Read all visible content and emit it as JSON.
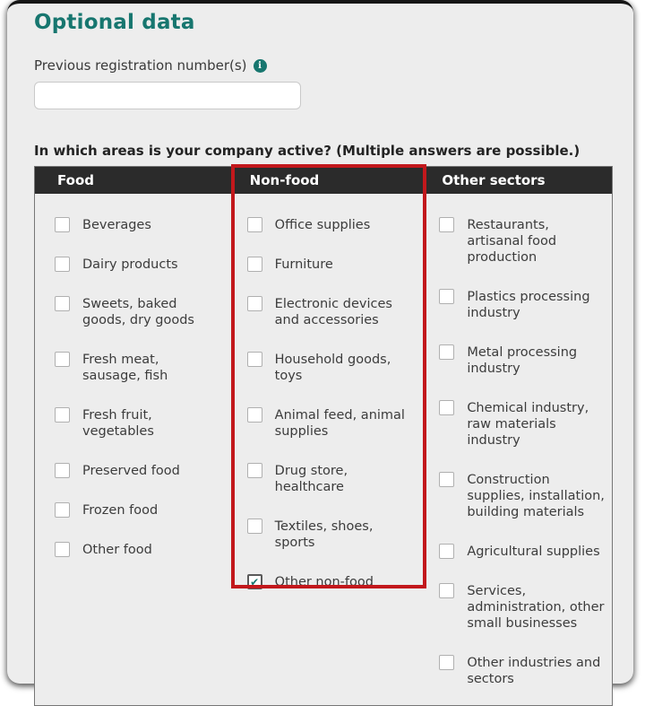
{
  "page": {
    "title": "Optional data"
  },
  "form": {
    "previous_registration": {
      "label": "Previous registration number(s)",
      "info_icon": "i",
      "value": "",
      "placeholder": ""
    },
    "question": "In which areas is your company active? (Multiple answers are possible.)"
  },
  "table": {
    "columns": [
      {
        "header": "Food",
        "items": [
          {
            "label": "Beverages",
            "checked": false
          },
          {
            "label": "Dairy products",
            "checked": false
          },
          {
            "label": "Sweets, baked goods, dry goods",
            "checked": false
          },
          {
            "label": "Fresh meat, sausage, fish",
            "checked": false
          },
          {
            "label": "Fresh fruit, vegetables",
            "checked": false
          },
          {
            "label": "Preserved food",
            "checked": false
          },
          {
            "label": "Frozen food",
            "checked": false
          },
          {
            "label": "Other food",
            "checked": false
          }
        ]
      },
      {
        "header": "Non-food",
        "highlighted": true,
        "items": [
          {
            "label": "Office supplies",
            "checked": false
          },
          {
            "label": "Furniture",
            "checked": false
          },
          {
            "label": "Electronic devices and accessories",
            "checked": false
          },
          {
            "label": "Household goods, toys",
            "checked": false
          },
          {
            "label": "Animal feed, animal supplies",
            "checked": false
          },
          {
            "label": "Drug store, healthcare",
            "checked": false
          },
          {
            "label": "Textiles, shoes, sports",
            "checked": false
          },
          {
            "label": "Other non-food",
            "checked": true
          }
        ]
      },
      {
        "header": "Other sectors",
        "items": [
          {
            "label": "Restaurants, artisanal food production",
            "checked": false
          },
          {
            "label": "Plastics processing industry",
            "checked": false
          },
          {
            "label": "Metal processing industry",
            "checked": false
          },
          {
            "label": "Chemical industry, raw materials industry",
            "checked": false
          },
          {
            "label": "Construction supplies, installation, building materials",
            "checked": false
          },
          {
            "label": "Agricultural supplies",
            "checked": false
          },
          {
            "label": "Services, administration, other small businesses",
            "checked": false
          },
          {
            "label": "Other industries and sectors",
            "checked": false
          }
        ]
      }
    ]
  },
  "colors": {
    "accent_teal": "#17766f",
    "highlight_red": "#c2181c",
    "header_bg": "#2b2b2b",
    "card_bg": "#ededed"
  }
}
